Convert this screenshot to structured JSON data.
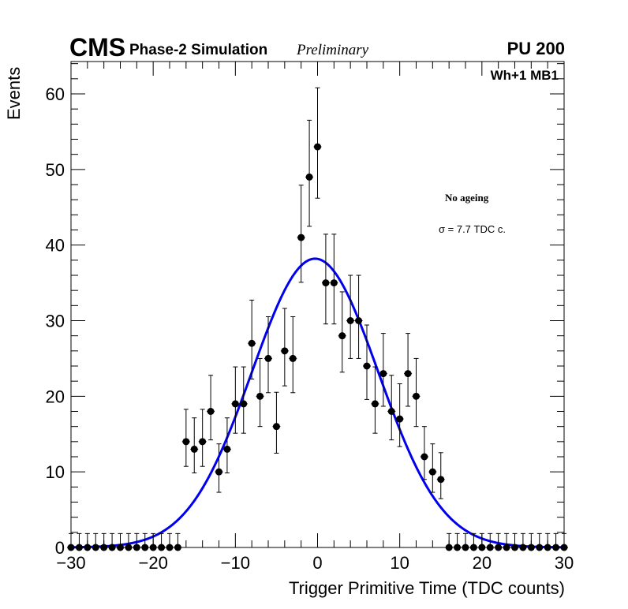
{
  "header": {
    "cms": "CMS",
    "simulation": "Phase-2 Simulation",
    "preliminary": "Preliminary",
    "pileup": "PU 200"
  },
  "annotations": {
    "station": "Wh+1 MB1",
    "condition": "No ageing",
    "sigma": "σ = 7.7 TDC c."
  },
  "chart_data": {
    "type": "scatter",
    "title": "",
    "xlabel": "Trigger Primitive Time (TDC counts)",
    "ylabel": "Events",
    "xlim": [
      -30,
      30
    ],
    "ylim": [
      0,
      64
    ],
    "xticks": [
      -30,
      -20,
      -10,
      0,
      10,
      20,
      30
    ],
    "xtick_labels": [
      "−30",
      "−20",
      "−10",
      "0",
      "10",
      "20",
      "30"
    ],
    "yticks": [
      0,
      10,
      20,
      30,
      40,
      50,
      60
    ],
    "ytick_labels": [
      "0",
      "10",
      "20",
      "30",
      "40",
      "50",
      "60"
    ],
    "grid": false,
    "series": [
      {
        "name": "data",
        "kind": "points-with-poisson-errors",
        "color": "#000000",
        "x": [
          -30,
          -29,
          -28,
          -27,
          -26,
          -25,
          -24,
          -23,
          -22,
          -21,
          -20,
          -19,
          -18,
          -17,
          -16,
          -15,
          -14,
          -13,
          -12,
          -11,
          -10,
          -9,
          -8,
          -7,
          -6,
          -5,
          -4,
          -3,
          -2,
          -1,
          0,
          1,
          2,
          3,
          4,
          5,
          6,
          7,
          8,
          9,
          10,
          11,
          12,
          13,
          14,
          15,
          16,
          17,
          18,
          19,
          20,
          21,
          22,
          23,
          24,
          25,
          26,
          27,
          28,
          29,
          30
        ],
        "y": [
          0,
          0,
          0,
          0,
          0,
          0,
          0,
          0,
          0,
          0,
          0,
          0,
          0,
          0,
          14,
          13,
          14,
          18,
          10,
          13,
          19,
          19,
          27,
          20,
          25,
          16,
          26,
          25,
          41,
          49,
          53,
          35,
          35,
          28,
          30,
          30,
          24,
          19,
          23,
          18,
          17,
          23,
          20,
          12,
          10,
          9,
          0,
          0,
          0,
          0,
          0,
          0,
          0,
          0,
          0,
          0,
          0,
          0,
          0,
          0,
          0
        ]
      },
      {
        "name": "gaussian fit",
        "kind": "curve",
        "color": "#0000ee",
        "amplitude": 38.2,
        "mean": -0.3,
        "sigma": 7.7
      }
    ]
  }
}
